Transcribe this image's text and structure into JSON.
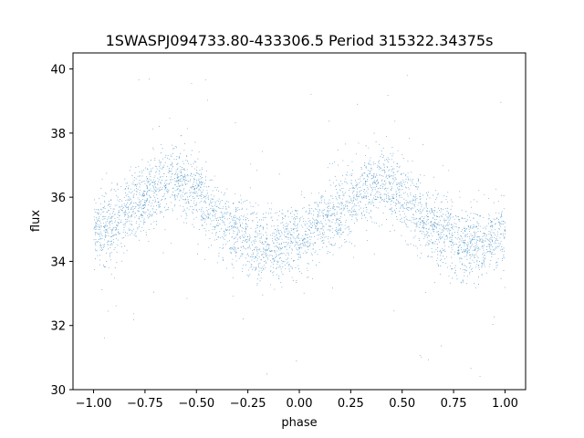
{
  "chart_data": {
    "type": "scatter",
    "title": "1SWASPJ094733.80-433306.5 Period 315322.34375s",
    "xlabel": "phase",
    "ylabel": "flux",
    "xlim": [
      -1.1,
      1.1
    ],
    "ylim": [
      30,
      40.5
    ],
    "xticks": [
      -1.0,
      -0.75,
      -0.5,
      -0.25,
      0.0,
      0.25,
      0.5,
      0.75,
      1.0
    ],
    "xtick_labels": [
      "−1.00",
      "−0.75",
      "−0.50",
      "−0.25",
      "0.00",
      "0.25",
      "0.50",
      "0.75",
      "1.00"
    ],
    "yticks": [
      30,
      32,
      34,
      36,
      38,
      40
    ],
    "ytick_labels": [
      "30",
      "32",
      "34",
      "36",
      "38",
      "40"
    ],
    "grid": false,
    "marker_color": "#1f77b4",
    "series": [
      {
        "x_range": [
          -1.0,
          1.0
        ],
        "trend": {
          "phase": [
            -1.0,
            -0.9,
            -0.8,
            -0.7,
            -0.6,
            -0.5,
            -0.4,
            -0.3,
            -0.2,
            -0.1,
            0.0,
            0.1,
            0.2,
            0.3,
            0.4,
            0.5,
            0.6,
            0.7,
            0.8,
            0.9,
            1.0
          ],
          "flux": [
            35.0,
            35.2,
            35.7,
            36.3,
            36.6,
            36.2,
            35.3,
            34.9,
            34.4,
            34.5,
            34.8,
            35.1,
            35.6,
            36.2,
            36.6,
            36.1,
            35.3,
            34.9,
            34.5,
            34.6,
            34.9
          ]
        },
        "scatter_sd": 0.55,
        "n_points": 5200
      }
    ]
  }
}
